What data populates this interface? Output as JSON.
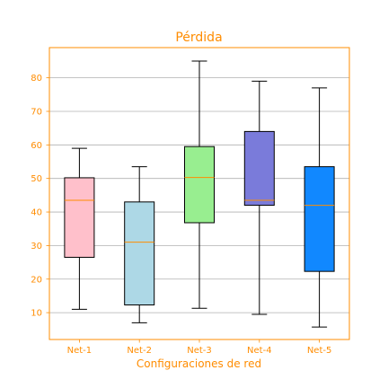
{
  "chart_data": {
    "type": "box",
    "title": "Pérdida",
    "xlabel": "Configuraciones de red",
    "ylabel": "",
    "categories": [
      "Net-1",
      "Net-2",
      "Net-3",
      "Net-4",
      "Net-5"
    ],
    "boxes": [
      {
        "name": "Net-1",
        "whisker_low": 11,
        "q1": 26.5,
        "median": 43.5,
        "q3": 50.2,
        "whisker_high": 59,
        "color": "#ffc0cb"
      },
      {
        "name": "Net-2",
        "whisker_low": 7,
        "q1": 12.3,
        "median": 31,
        "q3": 43,
        "whisker_high": 53.5,
        "color": "#add8e6"
      },
      {
        "name": "Net-3",
        "whisker_low": 11.3,
        "q1": 36.8,
        "median": 50.3,
        "q3": 59.5,
        "whisker_high": 85,
        "color": "#98ee90"
      },
      {
        "name": "Net-4",
        "whisker_low": 9.5,
        "q1": 42,
        "median": 43.5,
        "q3": 64,
        "whisker_high": 79,
        "color": "#7a7bda"
      },
      {
        "name": "Net-5",
        "whisker_low": 5.7,
        "q1": 22.3,
        "median": 42,
        "q3": 53.5,
        "whisker_high": 77,
        "color": "#1188ff"
      }
    ],
    "y_ticks": [
      10,
      20,
      30,
      40,
      50,
      60,
      70,
      80
    ],
    "ylim": [
      2,
      89
    ],
    "grid": "horizontal",
    "colors": {
      "accent": "#ff8c00",
      "median_line": "#ff8c00",
      "grid": "#b0b0b0",
      "box_edge": "#000000"
    }
  }
}
